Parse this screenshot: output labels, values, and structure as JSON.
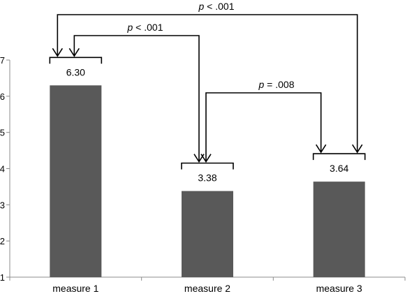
{
  "chart_data": {
    "type": "bar",
    "categories": [
      "measure 1",
      "measure 2",
      "measure 3"
    ],
    "values": [
      6.3,
      3.38,
      3.64
    ],
    "value_labels": [
      "6.30",
      "3.38",
      "3.64"
    ],
    "ylim": [
      1,
      7
    ],
    "yticks": [
      1,
      2,
      3,
      4,
      5,
      6,
      7
    ],
    "xlabel": "",
    "ylabel": "",
    "title": "",
    "bar_color": "#595959",
    "grid": false,
    "comparisons": [
      {
        "from": 0,
        "to": 2,
        "p_symbol": "p",
        "p_text": " < .001"
      },
      {
        "from": 0,
        "to": 1,
        "p_symbol": "p",
        "p_text": " < .001"
      },
      {
        "from": 1,
        "to": 2,
        "p_symbol": "p",
        "p_text": " = .008"
      }
    ]
  }
}
